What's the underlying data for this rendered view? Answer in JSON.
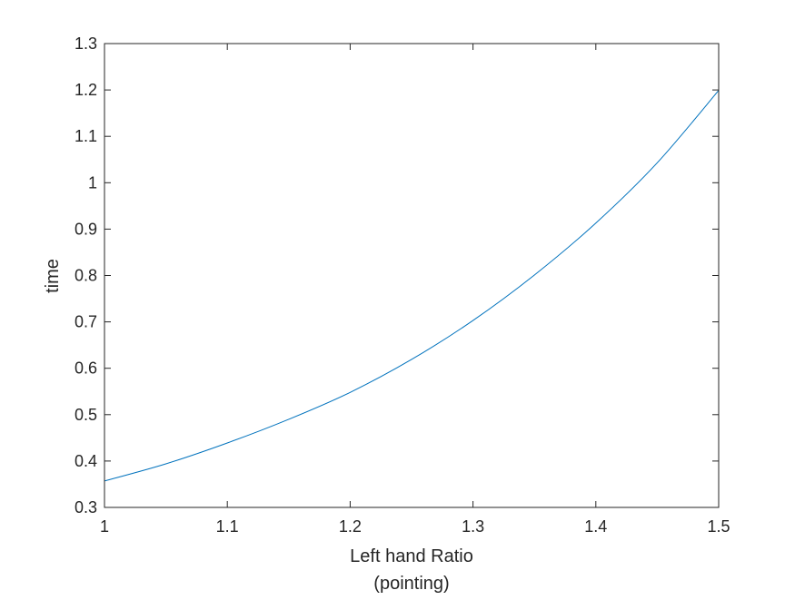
{
  "chart_data": {
    "type": "line",
    "title": "",
    "xlabel": "Left hand Ratio",
    "xlabel_line2": "(pointing)",
    "ylabel": "time",
    "xlim": [
      1,
      1.5
    ],
    "ylim": [
      0.3,
      1.3
    ],
    "xticks": [
      "1",
      "1.1",
      "1.2",
      "1.3",
      "1.4",
      "1.5"
    ],
    "yticks": [
      "0.3",
      "0.4",
      "0.5",
      "0.6",
      "0.7",
      "0.8",
      "0.9",
      "1",
      "1.1",
      "1.2",
      "1.3"
    ],
    "grid": false,
    "legend": "none",
    "series": [
      {
        "color": "#0072BD",
        "x": [
          1.0,
          1.05,
          1.1,
          1.15,
          1.2,
          1.25,
          1.3,
          1.35,
          1.4,
          1.45,
          1.5
        ],
        "y": [
          0.357,
          0.394,
          0.439,
          0.49,
          0.548,
          0.619,
          0.703,
          0.801,
          0.913,
          1.043,
          1.199
        ]
      }
    ]
  }
}
